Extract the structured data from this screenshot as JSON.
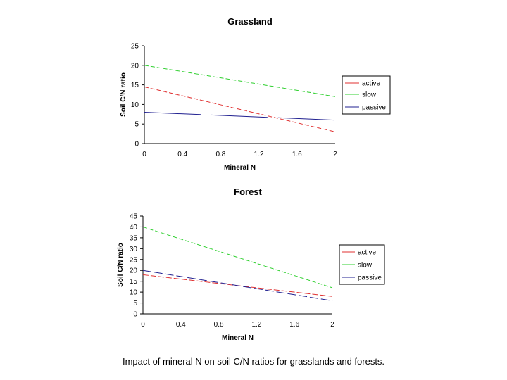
{
  "caption": "Impact of mineral N on soil C/N ratios for grasslands and forests.",
  "chart_data": [
    {
      "type": "line",
      "title": "Grassland",
      "xlabel": "Mineral N",
      "ylabel": "Soil C/N ratio",
      "x_ticks": [
        "0",
        "0.4",
        "0.8",
        "1.2",
        "1.6",
        "2"
      ],
      "xlim": [
        0,
        2
      ],
      "ylim": [
        0,
        25
      ],
      "y_ticks": [
        0,
        5,
        10,
        15,
        20,
        25
      ],
      "legend_position": "right",
      "series": [
        {
          "name": "active",
          "color": "#e03030",
          "dash": "6,3",
          "x": [
            0,
            2
          ],
          "values": [
            14.5,
            3
          ]
        },
        {
          "name": "slow",
          "color": "#30d030",
          "dash": "6,3",
          "x": [
            0,
            2
          ],
          "values": [
            20,
            12
          ]
        },
        {
          "name": "passive",
          "color": "#202090",
          "dash": "80,15",
          "x": [
            0,
            2
          ],
          "values": [
            8,
            6
          ]
        }
      ]
    },
    {
      "type": "line",
      "title": "Forest",
      "xlabel": "Mineral N",
      "ylabel": "Soil C/N ratio",
      "x_ticks": [
        "0",
        "0.4",
        "0.8",
        "1.2",
        "1.6",
        "2"
      ],
      "xlim": [
        0,
        2
      ],
      "ylim": [
        0,
        45
      ],
      "y_ticks": [
        0,
        5,
        10,
        15,
        20,
        25,
        30,
        35,
        40,
        45
      ],
      "legend_position": "right",
      "series": [
        {
          "name": "active",
          "color": "#e03030",
          "dash": "8,3",
          "x": [
            0,
            2
          ],
          "values": [
            18,
            8
          ]
        },
        {
          "name": "slow",
          "color": "#30d030",
          "dash": "6,3",
          "x": [
            0,
            2
          ],
          "values": [
            40,
            12
          ]
        },
        {
          "name": "passive",
          "color": "#202090",
          "dash": "12,4",
          "x": [
            0,
            2
          ],
          "values": [
            20,
            6
          ]
        }
      ]
    }
  ]
}
